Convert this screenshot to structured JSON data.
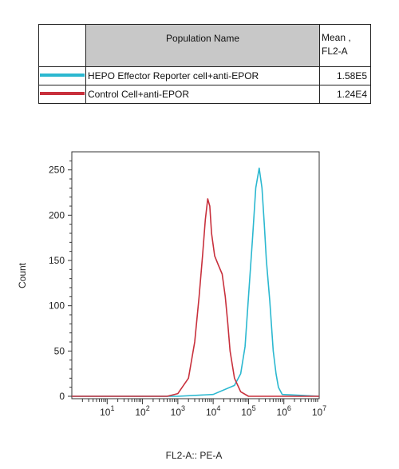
{
  "legend": {
    "header": {
      "name": "Population Name",
      "mean_line1": "Mean ,",
      "mean_line2": "FL2-A"
    },
    "rows": [
      {
        "label": "HEPO Effector Reporter cell+anti-EPOR",
        "mean": "1.58E5",
        "color": "#2bb8d0"
      },
      {
        "label": "Control Cell+anti-EPOR",
        "mean": "1.24E4",
        "color": "#c8303c"
      }
    ]
  },
  "chart_data": {
    "type": "line",
    "title": "",
    "xlabel": "FL2-A:: PE-A",
    "ylabel": "Count",
    "xscale": "log",
    "xlim": [
      1,
      10000000
    ],
    "ylim": [
      0,
      270
    ],
    "x_ticks": [
      10,
      100,
      1000,
      10000,
      100000,
      1000000,
      10000000
    ],
    "x_tick_labels": [
      {
        "base": "10",
        "exp": "1"
      },
      {
        "base": "10",
        "exp": "2"
      },
      {
        "base": "10",
        "exp": "3"
      },
      {
        "base": "10",
        "exp": "4"
      },
      {
        "base": "10",
        "exp": "5"
      },
      {
        "base": "10",
        "exp": "6"
      },
      {
        "base": "10",
        "exp": "7"
      }
    ],
    "y_ticks": [
      0,
      50,
      100,
      150,
      200,
      250
    ],
    "grid": false,
    "series": [
      {
        "name": "HEPO Effector Reporter cell+anti-EPOR",
        "color": "#2bb8d0",
        "x": [
          1,
          1000,
          10000,
          40000,
          60000,
          80000,
          100000,
          130000,
          160000,
          200000,
          240000,
          280000,
          320000,
          400000,
          500000,
          600000,
          700000,
          900000,
          10000000
        ],
        "y": [
          0,
          0,
          2,
          12,
          25,
          55,
          110,
          175,
          230,
          252,
          230,
          190,
          150,
          105,
          50,
          25,
          10,
          2,
          0
        ]
      },
      {
        "name": "Control Cell+anti-EPOR",
        "color": "#c8303c",
        "x": [
          1,
          500,
          1000,
          2000,
          3000,
          4000,
          5000,
          6000,
          7000,
          8000,
          9000,
          11000,
          14000,
          18000,
          22000,
          26000,
          30000,
          40000,
          60000,
          100000,
          10000000
        ],
        "y": [
          0,
          0,
          3,
          20,
          60,
          110,
          155,
          195,
          218,
          210,
          180,
          155,
          145,
          135,
          110,
          80,
          50,
          20,
          5,
          0,
          0
        ]
      }
    ]
  }
}
